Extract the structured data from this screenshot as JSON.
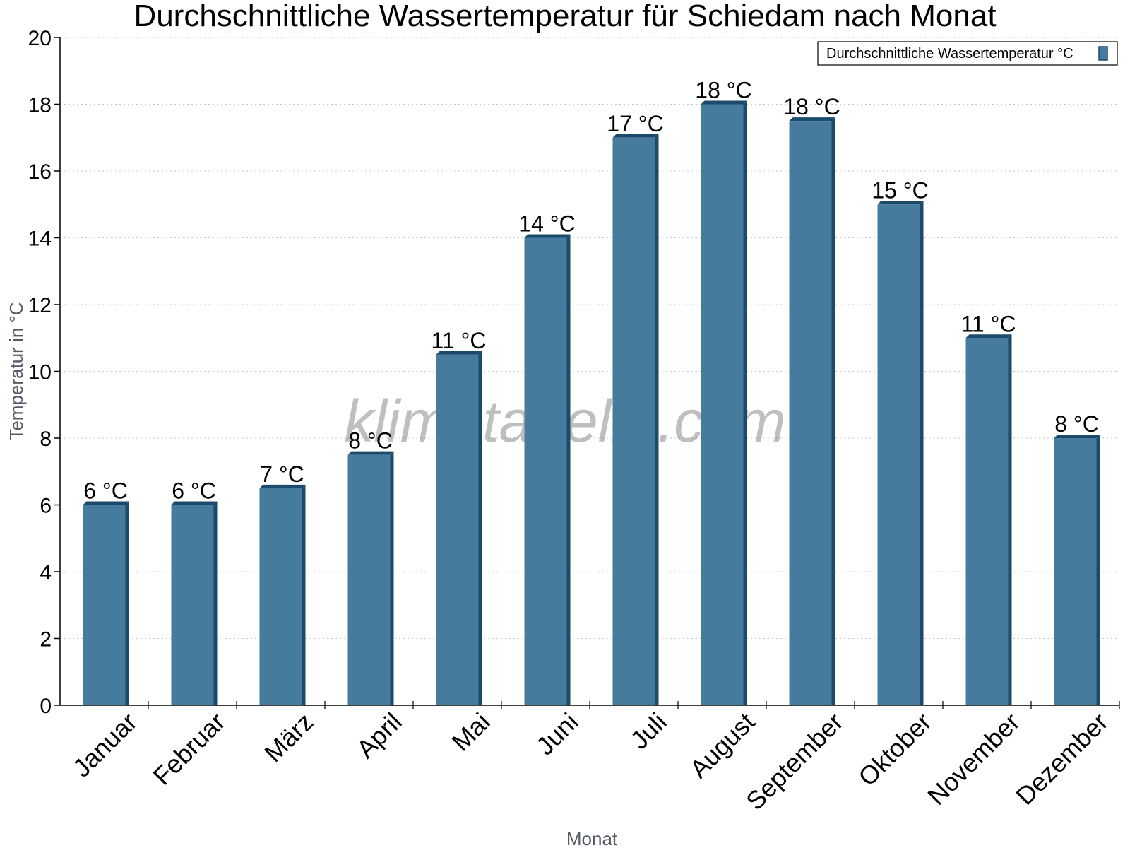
{
  "chart_data": {
    "type": "bar",
    "title": "Durchschnittliche Wassertemperatur für Schiedam nach Monat",
    "xlabel": "Monat",
    "ylabel": "Temperatur in °C",
    "ylim": [
      0,
      20
    ],
    "yticks": [
      0,
      2,
      4,
      6,
      8,
      10,
      12,
      14,
      16,
      18,
      20
    ],
    "grid": true,
    "legend_position": "top-right",
    "categories": [
      "Januar",
      "Februar",
      "März",
      "April",
      "Mai",
      "Juni",
      "Juli",
      "August",
      "September",
      "Oktober",
      "November",
      "Dezember"
    ],
    "series": [
      {
        "name": "Durchschnittliche Wassertemperatur °C",
        "values": [
          6,
          6,
          6.5,
          7.5,
          10.5,
          14,
          17,
          18,
          17.5,
          15,
          11,
          8
        ],
        "labels": [
          "6 °C",
          "6 °C",
          "7 °C",
          "8 °C",
          "11 °C",
          "14 °C",
          "17 °C",
          "18 °C",
          "18 °C",
          "15 °C",
          "11 °C",
          "8 °C"
        ],
        "color": "#467b9d",
        "edge_color": "#1b4a6b"
      }
    ],
    "watermark": "klimatabelle.com"
  }
}
